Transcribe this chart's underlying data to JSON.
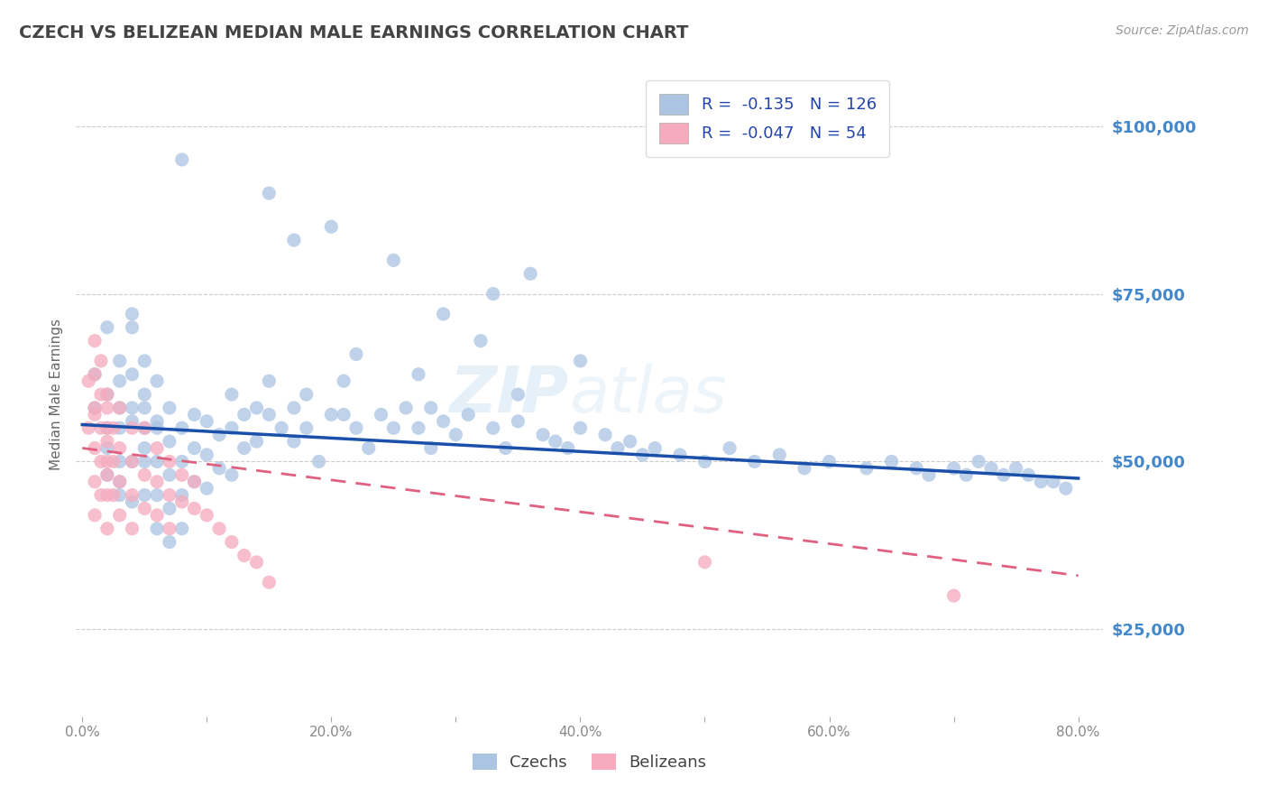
{
  "title": "CZECH VS BELIZEAN MEDIAN MALE EARNINGS CORRELATION CHART",
  "source_text": "Source: ZipAtlas.com",
  "ylabel": "Median Male Earnings",
  "xlim": [
    -0.005,
    0.82
  ],
  "ylim": [
    12000,
    108000
  ],
  "yticks": [
    25000,
    50000,
    75000,
    100000
  ],
  "ytick_labels": [
    "$25,000",
    "$50,000",
    "$75,000",
    "$100,000"
  ],
  "xticks": [
    0.0,
    0.1,
    0.2,
    0.3,
    0.4,
    0.5,
    0.6,
    0.7,
    0.8
  ],
  "xtick_labels": [
    "0.0%",
    "",
    "20.0%",
    "",
    "40.0%",
    "",
    "60.0%",
    "",
    "80.0%"
  ],
  "czech_color": "#aac4e2",
  "belizean_color": "#f5aabe",
  "czech_line_color": "#1a4faa",
  "belizean_line_color": "#e06080",
  "czech_R": -0.135,
  "czech_N": 126,
  "belizean_R": -0.047,
  "belizean_N": 54,
  "legend_label_czech": "Czechs",
  "legend_label_belizean": "Belizeans",
  "background_color": "#ffffff",
  "watermark_text_bold": "ZIP",
  "watermark_text_light": "atlas",
  "title_color": "#444444",
  "axis_label_color": "#666666",
  "ytick_color": "#4488cc",
  "xtick_color": "#888888",
  "grid_color": "#cccccc",
  "czech_scatter_x": [
    0.01,
    0.01,
    0.02,
    0.02,
    0.02,
    0.02,
    0.02,
    0.03,
    0.03,
    0.03,
    0.03,
    0.03,
    0.03,
    0.03,
    0.04,
    0.04,
    0.04,
    0.04,
    0.04,
    0.04,
    0.04,
    0.05,
    0.05,
    0.05,
    0.05,
    0.05,
    0.05,
    0.05,
    0.06,
    0.06,
    0.06,
    0.06,
    0.06,
    0.06,
    0.07,
    0.07,
    0.07,
    0.07,
    0.07,
    0.08,
    0.08,
    0.08,
    0.08,
    0.09,
    0.09,
    0.09,
    0.1,
    0.1,
    0.1,
    0.11,
    0.11,
    0.12,
    0.12,
    0.12,
    0.13,
    0.13,
    0.14,
    0.14,
    0.15,
    0.15,
    0.16,
    0.17,
    0.17,
    0.18,
    0.18,
    0.19,
    0.2,
    0.21,
    0.21,
    0.22,
    0.23,
    0.24,
    0.25,
    0.26,
    0.27,
    0.28,
    0.29,
    0.3,
    0.31,
    0.33,
    0.34,
    0.35,
    0.37,
    0.38,
    0.39,
    0.4,
    0.42,
    0.43,
    0.44,
    0.45,
    0.46,
    0.48,
    0.5,
    0.52,
    0.54,
    0.56,
    0.58,
    0.6,
    0.63,
    0.65,
    0.67,
    0.68,
    0.7,
    0.71,
    0.72,
    0.73,
    0.74,
    0.75,
    0.76,
    0.77,
    0.78,
    0.79,
    0.33,
    0.2,
    0.25,
    0.36,
    0.15,
    0.08,
    0.17,
    0.32,
    0.29,
    0.4,
    0.27,
    0.35,
    0.22,
    0.28
  ],
  "czech_scatter_y": [
    63000,
    58000,
    70000,
    55000,
    60000,
    52000,
    48000,
    65000,
    55000,
    50000,
    45000,
    58000,
    62000,
    47000,
    70000,
    63000,
    56000,
    50000,
    44000,
    58000,
    72000,
    65000,
    60000,
    55000,
    50000,
    45000,
    58000,
    52000,
    62000,
    56000,
    50000,
    45000,
    40000,
    55000,
    58000,
    53000,
    48000,
    43000,
    38000,
    55000,
    50000,
    45000,
    40000,
    57000,
    52000,
    47000,
    56000,
    51000,
    46000,
    54000,
    49000,
    60000,
    55000,
    48000,
    57000,
    52000,
    58000,
    53000,
    62000,
    57000,
    55000,
    58000,
    53000,
    60000,
    55000,
    50000,
    57000,
    62000,
    57000,
    55000,
    52000,
    57000,
    55000,
    58000,
    55000,
    52000,
    56000,
    54000,
    57000,
    55000,
    52000,
    56000,
    54000,
    53000,
    52000,
    55000,
    54000,
    52000,
    53000,
    51000,
    52000,
    51000,
    50000,
    52000,
    50000,
    51000,
    49000,
    50000,
    49000,
    50000,
    49000,
    48000,
    49000,
    48000,
    50000,
    49000,
    48000,
    49000,
    48000,
    47000,
    47000,
    46000,
    75000,
    85000,
    80000,
    78000,
    90000,
    95000,
    83000,
    68000,
    72000,
    65000,
    63000,
    60000,
    66000,
    58000
  ],
  "belizean_scatter_x": [
    0.005,
    0.005,
    0.01,
    0.01,
    0.01,
    0.01,
    0.01,
    0.01,
    0.01,
    0.015,
    0.015,
    0.015,
    0.015,
    0.015,
    0.02,
    0.02,
    0.02,
    0.02,
    0.02,
    0.02,
    0.02,
    0.02,
    0.025,
    0.025,
    0.025,
    0.03,
    0.03,
    0.03,
    0.03,
    0.04,
    0.04,
    0.04,
    0.04,
    0.05,
    0.05,
    0.05,
    0.06,
    0.06,
    0.06,
    0.07,
    0.07,
    0.07,
    0.08,
    0.08,
    0.09,
    0.09,
    0.1,
    0.11,
    0.12,
    0.13,
    0.14,
    0.15,
    0.5,
    0.7
  ],
  "belizean_scatter_y": [
    62000,
    55000,
    68000,
    63000,
    57000,
    52000,
    47000,
    42000,
    58000,
    65000,
    60000,
    55000,
    50000,
    45000,
    60000,
    55000,
    50000,
    45000,
    40000,
    58000,
    53000,
    48000,
    55000,
    50000,
    45000,
    52000,
    47000,
    42000,
    58000,
    50000,
    45000,
    40000,
    55000,
    48000,
    43000,
    55000,
    47000,
    42000,
    52000,
    45000,
    40000,
    50000,
    44000,
    48000,
    43000,
    47000,
    42000,
    40000,
    38000,
    36000,
    35000,
    32000,
    35000,
    30000
  ]
}
